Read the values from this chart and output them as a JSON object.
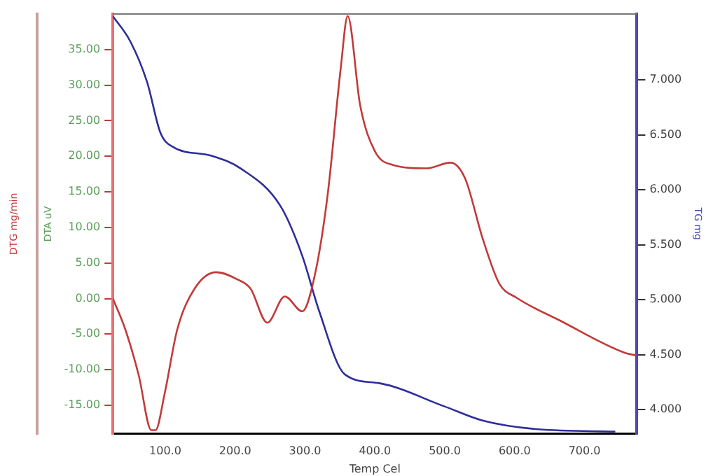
{
  "chart_data": {
    "type": "line",
    "xlabel": "Temp Cel",
    "ylabel": "DTA uV",
    "y2label": "TG mg",
    "y3label": "DTG mg/min",
    "xlim": [
      25,
      775
    ],
    "xticks": [
      {
        "value": 100,
        "label": "100.0"
      },
      {
        "value": 200,
        "label": "200.0"
      },
      {
        "value": 300,
        "label": "300.0"
      },
      {
        "value": 400,
        "label": "400.0"
      },
      {
        "value": 500,
        "label": "500.0"
      },
      {
        "value": 600,
        "label": "600.0"
      },
      {
        "value": 700,
        "label": "700.0"
      }
    ],
    "ylim": [
      -19,
      40
    ],
    "yticks": [
      {
        "value": -15,
        "label": "-15.00"
      },
      {
        "value": -10,
        "label": "-10.00"
      },
      {
        "value": -5,
        "label": "-5.00"
      },
      {
        "value": 0,
        "label": "0.00"
      },
      {
        "value": 5,
        "label": "5.00"
      },
      {
        "value": 10,
        "label": "10.00"
      },
      {
        "value": 15,
        "label": "15.00"
      },
      {
        "value": 20,
        "label": "20.00"
      },
      {
        "value": 25,
        "label": "25.00"
      },
      {
        "value": 30,
        "label": "30.00"
      },
      {
        "value": 35,
        "label": "35.00"
      }
    ],
    "y2lim": [
      3.78,
      7.6
    ],
    "y2ticks": [
      {
        "value": 4,
        "label": "4.000"
      },
      {
        "value": 4.5,
        "label": "4.500"
      },
      {
        "value": 5,
        "label": "5.000"
      },
      {
        "value": 5.5,
        "label": "5.500"
      },
      {
        "value": 6,
        "label": "6.000"
      },
      {
        "value": 6.5,
        "label": "6.500"
      },
      {
        "value": 7,
        "label": "7.000"
      }
    ],
    "grid": false,
    "legend": false,
    "marker": "none",
    "line_style": "solid",
    "series": [
      {
        "color": "#c23a3a",
        "x": [
          25,
          43,
          62,
          80,
          86,
          99,
          117,
          142,
          173,
          203,
          222,
          246,
          271,
          296,
          314,
          332,
          351,
          361,
          379,
          400,
          425,
          474,
          508,
          529,
          554,
          578,
          603,
          665,
          757,
          774
        ],
        "values": [
          0,
          -4.4,
          -10.8,
          -18.5,
          -18.5,
          -13.4,
          -4.4,
          1.4,
          3.7,
          2.7,
          1.4,
          -3.4,
          0.3,
          -1.8,
          3.3,
          14.3,
          32.3,
          39.7,
          27.1,
          20.7,
          18.8,
          18.3,
          19.1,
          16.9,
          8.5,
          2.1,
          0.1,
          -3.1,
          -7.6,
          -8
        ]
      },
      {
        "color": "#2e2e9a",
        "axis": "y2",
        "x": [
          25,
          50,
          74,
          93,
          111,
          166,
          209,
          265,
          296,
          320,
          357,
          406,
          499,
          554,
          634,
          744
        ],
        "values": [
          7.58,
          7.35,
          6.98,
          6.52,
          6.39,
          6.31,
          6.19,
          5.85,
          5.4,
          4.9,
          4.32,
          4.24,
          4.03,
          3.9,
          3.82,
          3.8
        ]
      }
    ]
  }
}
